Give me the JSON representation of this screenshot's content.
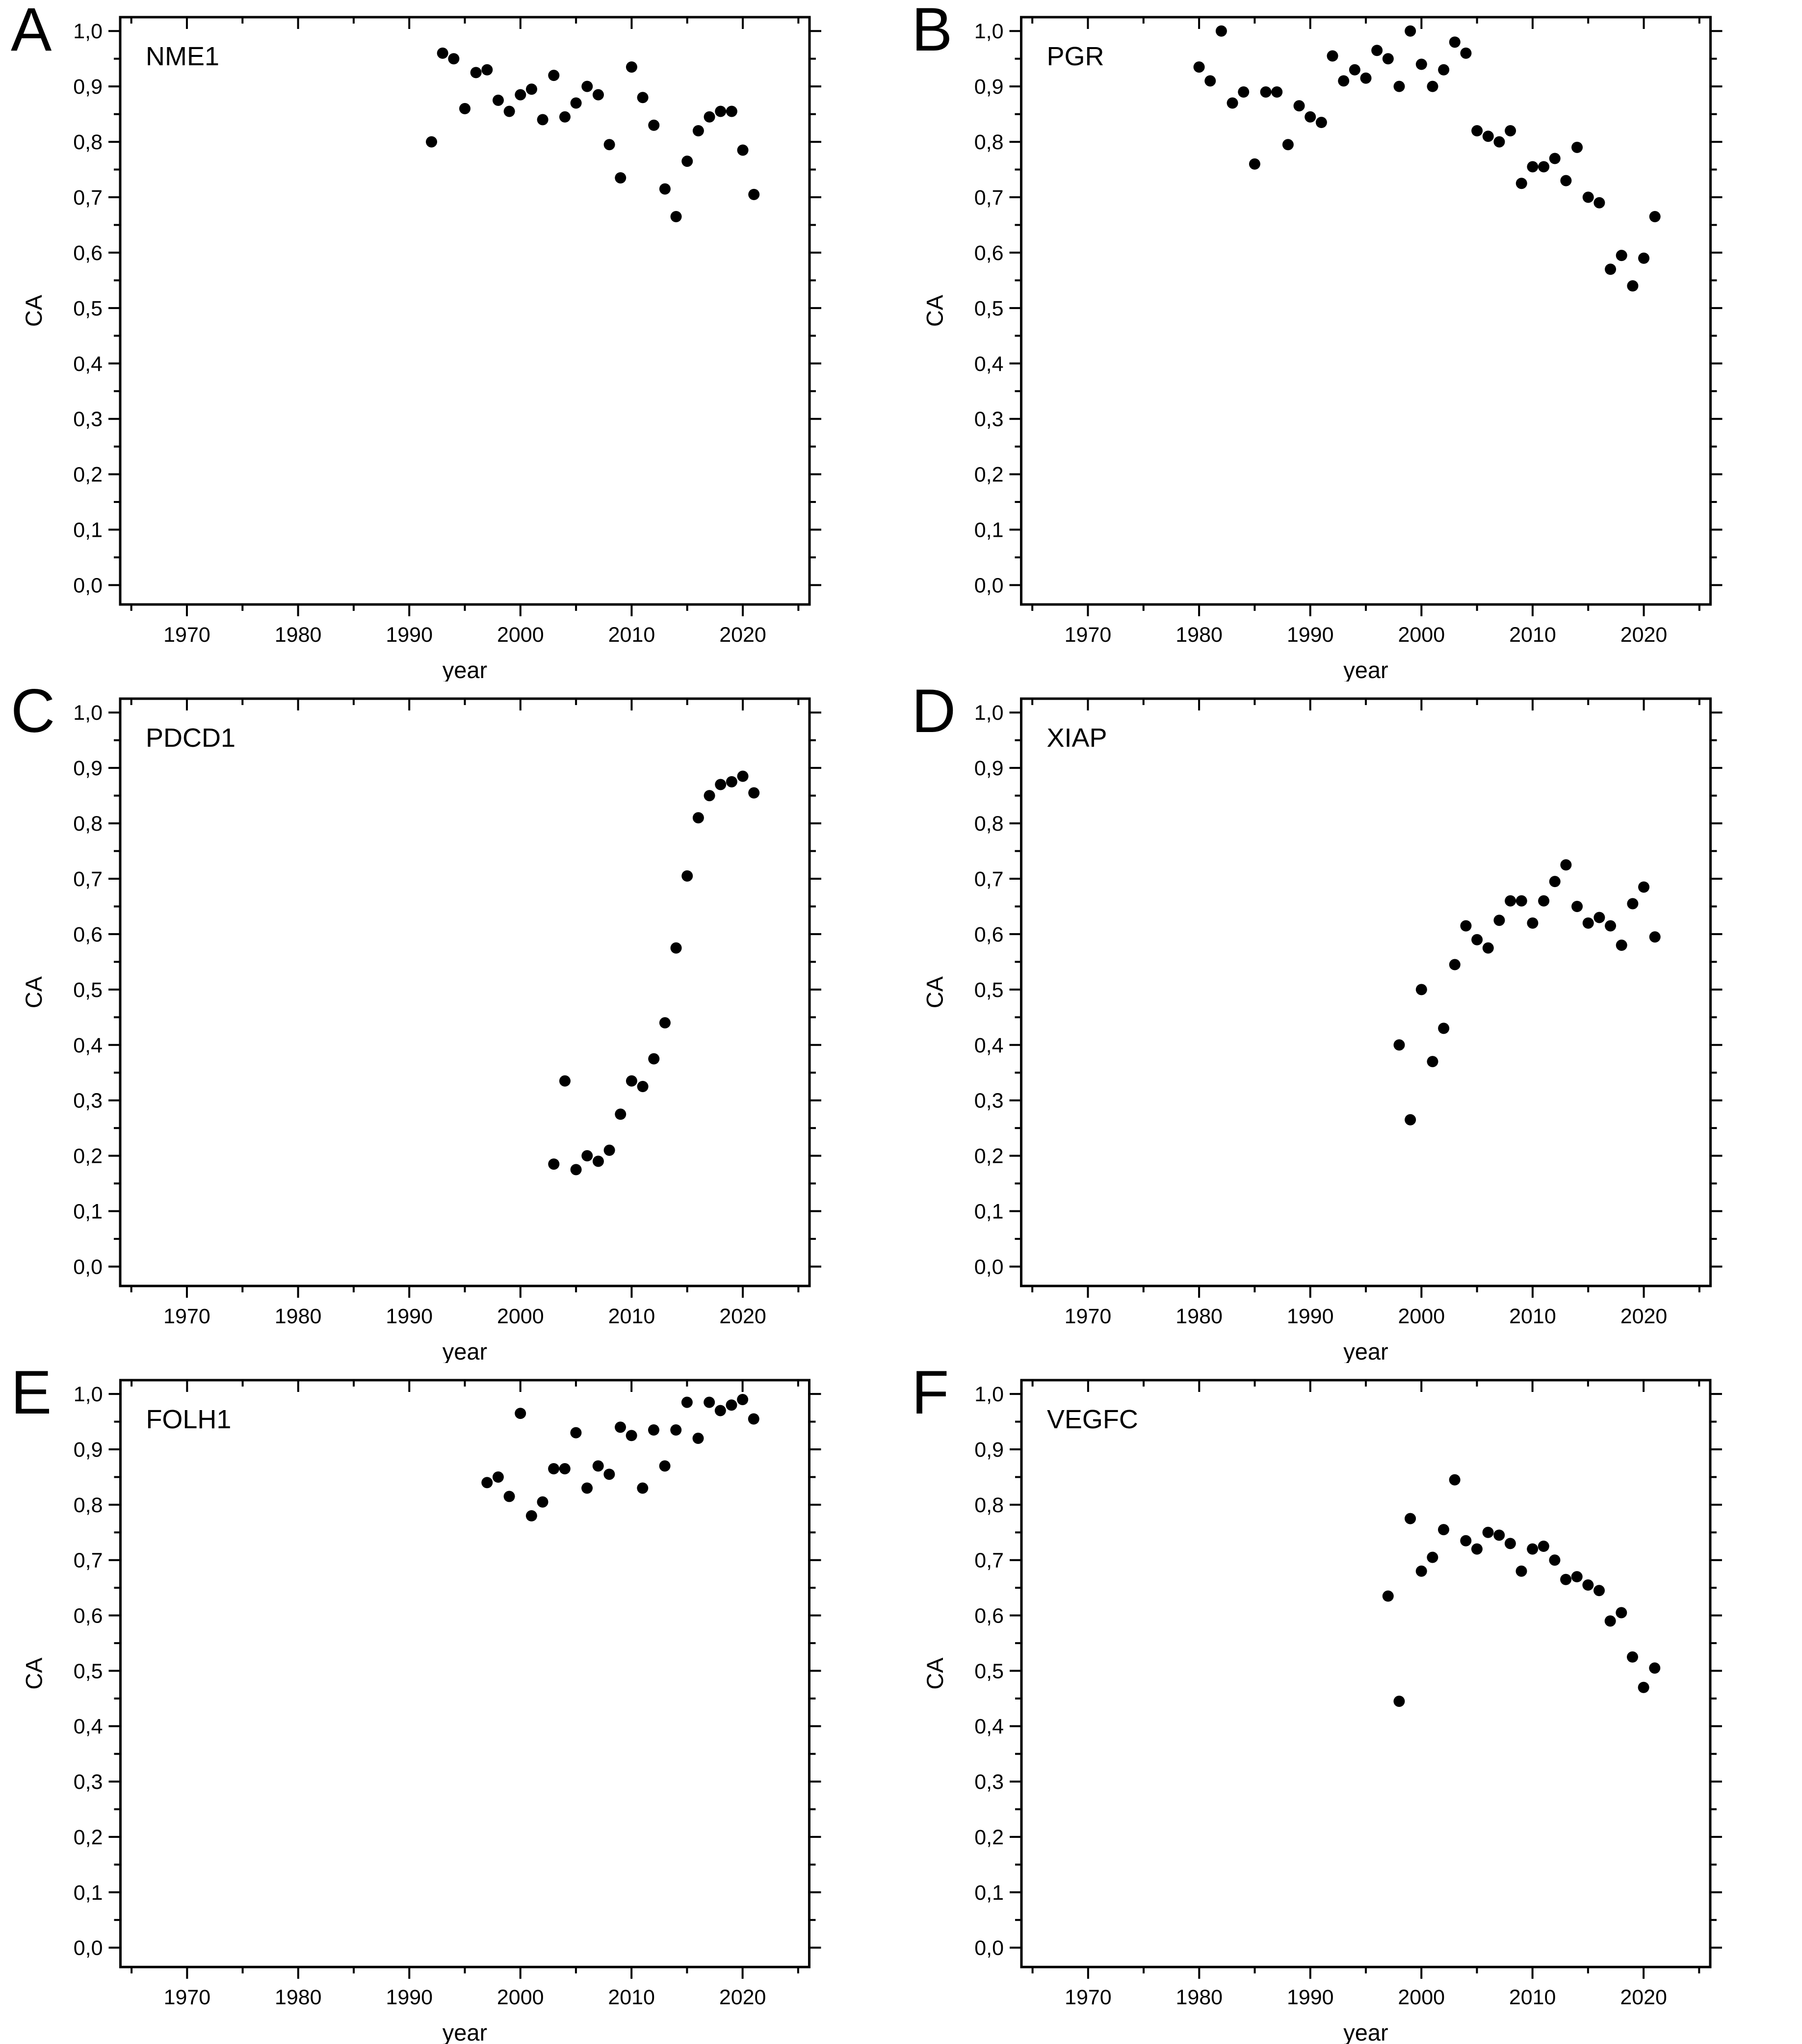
{
  "page": {
    "background_color": "#ffffff",
    "axis_color": "#000000",
    "marker_color": "#000000"
  },
  "axes": {
    "x_label": "year",
    "y_label": "CA",
    "x_range": [
      1964,
      2026
    ],
    "y_range": [
      -0.035,
      1.025
    ],
    "x_major_ticks": [
      {
        "value": 1970,
        "label": "1970"
      },
      {
        "value": 1980,
        "label": "1980"
      },
      {
        "value": 1990,
        "label": "1990"
      },
      {
        "value": 2000,
        "label": "2000"
      },
      {
        "value": 2010,
        "label": "2010"
      },
      {
        "value": 2020,
        "label": "2020"
      }
    ],
    "x_minor_ticks": [
      1965,
      1975,
      1985,
      1995,
      2005,
      2015,
      2025
    ],
    "y_major_ticks": [
      {
        "value": 0.0,
        "label": "0,0"
      },
      {
        "value": 0.1,
        "label": "0,1"
      },
      {
        "value": 0.2,
        "label": "0,2"
      },
      {
        "value": 0.3,
        "label": "0,3"
      },
      {
        "value": 0.4,
        "label": "0,4"
      },
      {
        "value": 0.5,
        "label": "0,5"
      },
      {
        "value": 0.6,
        "label": "0,6"
      },
      {
        "value": 0.7,
        "label": "0,7"
      },
      {
        "value": 0.8,
        "label": "0,8"
      },
      {
        "value": 0.9,
        "label": "0,9"
      },
      {
        "value": 1.0,
        "label": "1,0"
      }
    ],
    "y_minor_ticks": [
      0.05,
      0.15,
      0.25,
      0.35,
      0.45,
      0.55,
      0.65,
      0.75,
      0.85,
      0.95
    ],
    "grid": false,
    "legend": "none"
  },
  "chart_data": [
    {
      "type": "scatter",
      "panel_label": "A",
      "title": "NME1",
      "xlabel": "year",
      "ylabel": "CA",
      "xlim": [
        1964,
        2026
      ],
      "ylim": [
        -0.035,
        1.025
      ],
      "points": [
        [
          1992,
          0.8
        ],
        [
          1993,
          0.96
        ],
        [
          1994,
          0.95
        ],
        [
          1995,
          0.86
        ],
        [
          1996,
          0.925
        ],
        [
          1997,
          0.93
        ],
        [
          1998,
          0.875
        ],
        [
          1999,
          0.855
        ],
        [
          2000,
          0.885
        ],
        [
          2001,
          0.895
        ],
        [
          2002,
          0.84
        ],
        [
          2003,
          0.92
        ],
        [
          2004,
          0.845
        ],
        [
          2005,
          0.87
        ],
        [
          2006,
          0.9
        ],
        [
          2007,
          0.885
        ],
        [
          2008,
          0.795
        ],
        [
          2009,
          0.735
        ],
        [
          2010,
          0.935
        ],
        [
          2011,
          0.88
        ],
        [
          2012,
          0.83
        ],
        [
          2013,
          0.715
        ],
        [
          2014,
          0.665
        ],
        [
          2015,
          0.765
        ],
        [
          2016,
          0.82
        ],
        [
          2017,
          0.845
        ],
        [
          2018,
          0.855
        ],
        [
          2019,
          0.855
        ],
        [
          2020,
          0.785
        ],
        [
          2021,
          0.705
        ]
      ]
    },
    {
      "type": "scatter",
      "panel_label": "B",
      "title": "PGR",
      "xlabel": "year",
      "ylabel": "CA",
      "xlim": [
        1964,
        2026
      ],
      "ylim": [
        -0.035,
        1.025
      ],
      "points": [
        [
          1980,
          0.935
        ],
        [
          1981,
          0.91
        ],
        [
          1982,
          1.0
        ],
        [
          1983,
          0.87
        ],
        [
          1984,
          0.89
        ],
        [
          1985,
          0.76
        ],
        [
          1986,
          0.89
        ],
        [
          1987,
          0.89
        ],
        [
          1988,
          0.795
        ],
        [
          1989,
          0.865
        ],
        [
          1990,
          0.845
        ],
        [
          1991,
          0.835
        ],
        [
          1992,
          0.955
        ],
        [
          1993,
          0.91
        ],
        [
          1994,
          0.93
        ],
        [
          1995,
          0.915
        ],
        [
          1996,
          0.965
        ],
        [
          1997,
          0.95
        ],
        [
          1998,
          0.9
        ],
        [
          1999,
          1.0
        ],
        [
          2000,
          0.94
        ],
        [
          2001,
          0.9
        ],
        [
          2002,
          0.93
        ],
        [
          2003,
          0.98
        ],
        [
          2004,
          0.96
        ],
        [
          2005,
          0.82
        ],
        [
          2006,
          0.81
        ],
        [
          2007,
          0.8
        ],
        [
          2008,
          0.82
        ],
        [
          2009,
          0.725
        ],
        [
          2010,
          0.755
        ],
        [
          2011,
          0.755
        ],
        [
          2012,
          0.77
        ],
        [
          2013,
          0.73
        ],
        [
          2014,
          0.79
        ],
        [
          2015,
          0.7
        ],
        [
          2016,
          0.69
        ],
        [
          2017,
          0.57
        ],
        [
          2018,
          0.595
        ],
        [
          2019,
          0.54
        ],
        [
          2020,
          0.59
        ],
        [
          2021,
          0.665
        ]
      ]
    },
    {
      "type": "scatter",
      "panel_label": "C",
      "title": "PDCD1",
      "xlabel": "year",
      "ylabel": "CA",
      "xlim": [
        1964,
        2026
      ],
      "ylim": [
        -0.035,
        1.025
      ],
      "points": [
        [
          2003,
          0.185
        ],
        [
          2004,
          0.335
        ],
        [
          2005,
          0.175
        ],
        [
          2006,
          0.2
        ],
        [
          2007,
          0.19
        ],
        [
          2008,
          0.21
        ],
        [
          2009,
          0.275
        ],
        [
          2010,
          0.335
        ],
        [
          2011,
          0.325
        ],
        [
          2012,
          0.375
        ],
        [
          2013,
          0.44
        ],
        [
          2014,
          0.575
        ],
        [
          2015,
          0.705
        ],
        [
          2016,
          0.81
        ],
        [
          2017,
          0.85
        ],
        [
          2018,
          0.87
        ],
        [
          2019,
          0.875
        ],
        [
          2020,
          0.885
        ],
        [
          2021,
          0.855
        ]
      ]
    },
    {
      "type": "scatter",
      "panel_label": "D",
      "title": "XIAP",
      "xlabel": "year",
      "ylabel": "CA",
      "xlim": [
        1964,
        2026
      ],
      "ylim": [
        -0.035,
        1.025
      ],
      "points": [
        [
          1998,
          0.4
        ],
        [
          1999,
          0.265
        ],
        [
          2000,
          0.5
        ],
        [
          2001,
          0.37
        ],
        [
          2002,
          0.43
        ],
        [
          2003,
          0.545
        ],
        [
          2004,
          0.615
        ],
        [
          2005,
          0.59
        ],
        [
          2006,
          0.575
        ],
        [
          2007,
          0.625
        ],
        [
          2008,
          0.66
        ],
        [
          2009,
          0.66
        ],
        [
          2010,
          0.62
        ],
        [
          2011,
          0.66
        ],
        [
          2012,
          0.695
        ],
        [
          2013,
          0.725
        ],
        [
          2014,
          0.65
        ],
        [
          2015,
          0.62
        ],
        [
          2016,
          0.63
        ],
        [
          2017,
          0.615
        ],
        [
          2018,
          0.58
        ],
        [
          2019,
          0.655
        ],
        [
          2020,
          0.685
        ],
        [
          2021,
          0.595
        ]
      ]
    },
    {
      "type": "scatter",
      "panel_label": "E",
      "title": "FOLH1",
      "xlabel": "year",
      "ylabel": "CA",
      "xlim": [
        1964,
        2026
      ],
      "ylim": [
        -0.035,
        1.025
      ],
      "points": [
        [
          1997,
          0.84
        ],
        [
          1998,
          0.85
        ],
        [
          1999,
          0.815
        ],
        [
          2000,
          0.965
        ],
        [
          2001,
          0.78
        ],
        [
          2002,
          0.805
        ],
        [
          2003,
          0.865
        ],
        [
          2004,
          0.865
        ],
        [
          2005,
          0.93
        ],
        [
          2006,
          0.83
        ],
        [
          2007,
          0.87
        ],
        [
          2008,
          0.855
        ],
        [
          2009,
          0.94
        ],
        [
          2010,
          0.925
        ],
        [
          2011,
          0.83
        ],
        [
          2012,
          0.935
        ],
        [
          2013,
          0.87
        ],
        [
          2014,
          0.935
        ],
        [
          2015,
          0.985
        ],
        [
          2016,
          0.92
        ],
        [
          2017,
          0.985
        ],
        [
          2018,
          0.97
        ],
        [
          2019,
          0.98
        ],
        [
          2020,
          0.99
        ],
        [
          2021,
          0.955
        ]
      ]
    },
    {
      "type": "scatter",
      "panel_label": "F",
      "title": "VEGFC",
      "xlabel": "year",
      "ylabel": "CA",
      "xlim": [
        1964,
        2026
      ],
      "ylim": [
        -0.035,
        1.025
      ],
      "points": [
        [
          1997,
          0.635
        ],
        [
          1998,
          0.445
        ],
        [
          1999,
          0.775
        ],
        [
          2000,
          0.68
        ],
        [
          2001,
          0.705
        ],
        [
          2002,
          0.755
        ],
        [
          2003,
          0.845
        ],
        [
          2004,
          0.735
        ],
        [
          2005,
          0.72
        ],
        [
          2006,
          0.75
        ],
        [
          2007,
          0.745
        ],
        [
          2008,
          0.73
        ],
        [
          2009,
          0.68
        ],
        [
          2010,
          0.72
        ],
        [
          2011,
          0.725
        ],
        [
          2012,
          0.7
        ],
        [
          2013,
          0.665
        ],
        [
          2014,
          0.67
        ],
        [
          2015,
          0.655
        ],
        [
          2016,
          0.645
        ],
        [
          2017,
          0.59
        ],
        [
          2018,
          0.605
        ],
        [
          2019,
          0.525
        ],
        [
          2020,
          0.47
        ],
        [
          2021,
          0.505
        ]
      ]
    }
  ]
}
